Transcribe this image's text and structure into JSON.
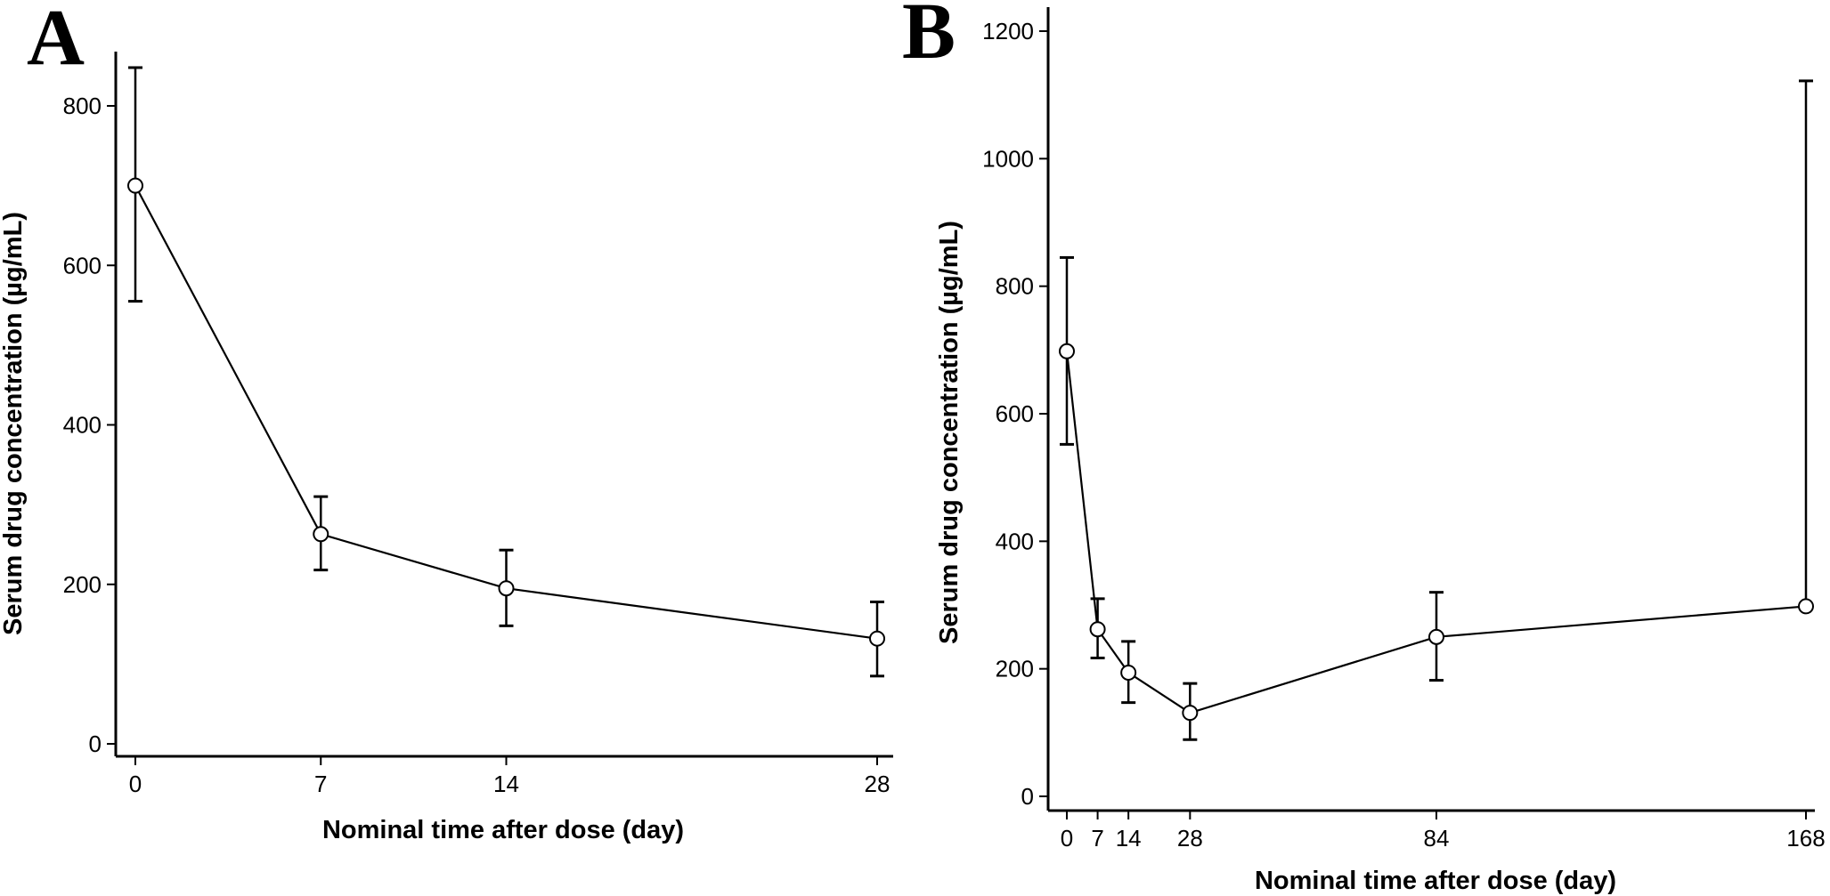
{
  "chart_data": [
    {
      "panel": "A",
      "type": "line",
      "xlabel": "Nominal time after dose (day)",
      "ylabel": "Serum drug concentration (µg/mL)",
      "xticks": [
        0,
        7,
        14,
        28
      ],
      "yticks": [
        0,
        200,
        400,
        600,
        800
      ],
      "xlim": [
        -0.5,
        28.5
      ],
      "ylim": [
        -15,
        865
      ],
      "series": [
        {
          "x": [
            0,
            7,
            14,
            28
          ],
          "y": [
            700,
            263,
            195,
            132
          ],
          "err_low": [
            555,
            218,
            148,
            85
          ],
          "err_high": [
            848,
            310,
            243,
            178
          ]
        }
      ]
    },
    {
      "panel": "B",
      "type": "line",
      "xlabel": "Nominal time after dose (day)",
      "ylabel": "Serum drug concentration (µg/mL)",
      "xticks": [
        0,
        7,
        14,
        28,
        84,
        168
      ],
      "yticks": [
        0,
        200,
        400,
        600,
        800,
        1000,
        1200
      ],
      "xlim": [
        -3,
        170
      ],
      "ylim": [
        -20,
        1230
      ],
      "series": [
        {
          "x": [
            0,
            7,
            14,
            28,
            84,
            168
          ],
          "y": [
            698,
            262,
            194,
            131,
            250,
            298
          ],
          "err_low": [
            552,
            217,
            147,
            89,
            182,
            298
          ],
          "err_high": [
            845,
            310,
            243,
            177,
            320,
            1122
          ]
        }
      ]
    }
  ]
}
